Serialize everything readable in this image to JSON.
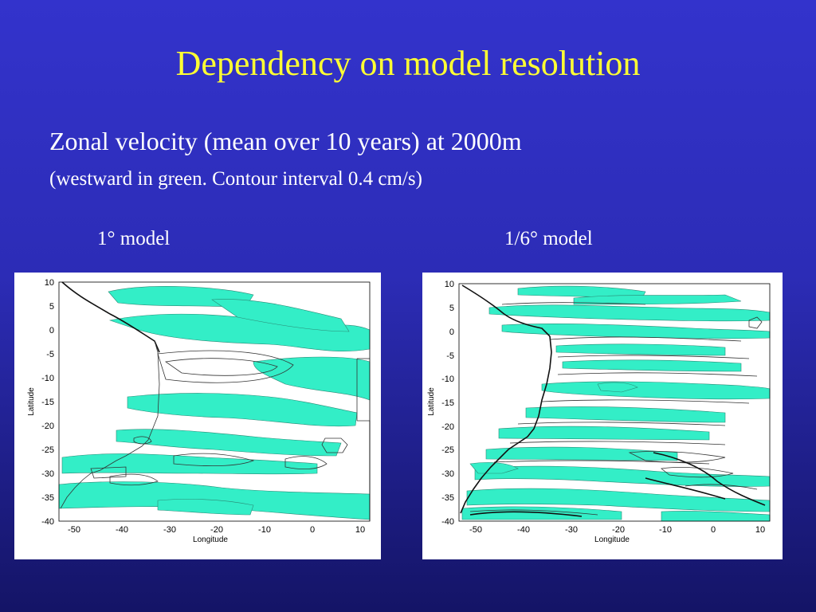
{
  "title": "Dependency on model resolution",
  "subtitle": "Zonal velocity (mean over 10 years) at 2000m",
  "note": "(westward in green. Contour interval 0.4 cm/s)",
  "panels": [
    {
      "label": "1° model",
      "xlabel": "Longitude",
      "ylabel": "Latitude",
      "xticks": [
        "-50",
        "-40",
        "-30",
        "-20",
        "-10",
        "0",
        "10"
      ],
      "yticks": [
        "10",
        "5",
        "0",
        "-5",
        "-10",
        "-15",
        "-20",
        "-25",
        "-30",
        "-35",
        "-40"
      ]
    },
    {
      "label": "1/6° model",
      "xlabel": "Longitude",
      "ylabel": "Latitude",
      "xticks": [
        "-50",
        "-40",
        "-30",
        "-20",
        "-10",
        "0",
        "10"
      ],
      "yticks": [
        "10",
        "5",
        "0",
        "-5",
        "-10",
        "-15",
        "-20",
        "-25",
        "-30",
        "-35",
        "-40"
      ]
    }
  ],
  "colors": {
    "westward": "#33eec7",
    "title": "#ffff33",
    "background": "#3333cc"
  }
}
